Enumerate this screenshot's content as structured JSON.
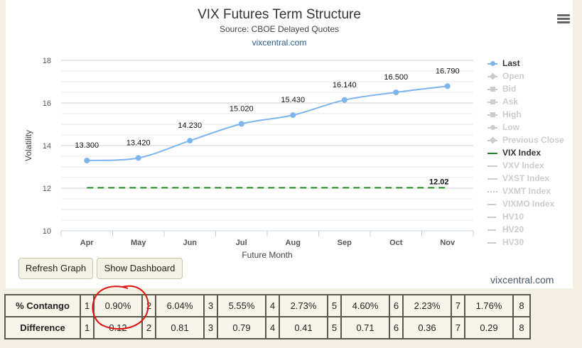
{
  "chart": {
    "title": "VIX Futures Term Structure",
    "subtitle": "Source: CBOE Delayed Quotes",
    "site_link": "vixcentral.com",
    "menu_icon": "hamburger-menu-icon"
  },
  "chart_data": {
    "type": "line",
    "xlabel": "Future Month",
    "ylabel": "Volatility",
    "categories": [
      "Apr",
      "May",
      "Jun",
      "Jul",
      "Aug",
      "Sep",
      "Oct",
      "Nov"
    ],
    "ylim": [
      10,
      18
    ],
    "yticks": [
      10,
      12,
      14,
      16,
      18
    ],
    "grid": true,
    "legend_placement": "right",
    "series": [
      {
        "name": "Last",
        "values": [
          13.3,
          13.42,
          14.23,
          15.02,
          15.43,
          16.14,
          16.5,
          16.79
        ],
        "labels": [
          "13.300",
          "13.420",
          "14.230",
          "15.020",
          "15.430",
          "16.140",
          "16.500",
          "16.790"
        ],
        "color": "#7cb5ec"
      },
      {
        "name": "VIX Index",
        "value": 12.02,
        "label": "12.02",
        "style": "dashed",
        "color": "#1a8a1a"
      }
    ]
  },
  "legend": [
    {
      "label": "Last",
      "active": true,
      "swatch": "line-dot",
      "color": "#7cb5ec"
    },
    {
      "label": "Open",
      "active": false,
      "swatch": "line-diamond"
    },
    {
      "label": "Bid",
      "active": false,
      "swatch": "line-square"
    },
    {
      "label": "Ask",
      "active": false,
      "swatch": "line-triangle"
    },
    {
      "label": "High",
      "active": false,
      "swatch": "line-triangle-down"
    },
    {
      "label": "Low",
      "active": false,
      "swatch": "line-dot"
    },
    {
      "label": "Previous Close",
      "active": false,
      "swatch": "line-diamond"
    },
    {
      "label": "VIX Index",
      "active": true,
      "swatch": "line",
      "color": "#1a8a1a"
    },
    {
      "label": "VXV Index",
      "active": false,
      "swatch": "line"
    },
    {
      "label": "VXST Index",
      "active": false,
      "swatch": "line"
    },
    {
      "label": "VXMT Index",
      "active": false,
      "swatch": "dotted"
    },
    {
      "label": "VIXMO Index",
      "active": false,
      "swatch": "dash-dot"
    },
    {
      "label": "HV10",
      "active": false,
      "swatch": "dash-dot"
    },
    {
      "label": "HV20",
      "active": false,
      "swatch": "dash-dot"
    },
    {
      "label": "HV30",
      "active": false,
      "swatch": "dash-dot"
    }
  ],
  "buttons": {
    "refresh": "Refresh Graph",
    "dashboard": "Show Dashboard"
  },
  "footer_link": "vixcentral.com",
  "table": {
    "rows": [
      {
        "label": "% Contango",
        "cells": [
          {
            "idx": "1",
            "val": "0.90%"
          },
          {
            "idx": "2",
            "val": "6.04%"
          },
          {
            "idx": "3",
            "val": "5.55%"
          },
          {
            "idx": "4",
            "val": "2.73%"
          },
          {
            "idx": "5",
            "val": "4.60%"
          },
          {
            "idx": "6",
            "val": "2.23%"
          },
          {
            "idx": "7",
            "val": "1.76%"
          }
        ],
        "last": "8"
      },
      {
        "label": "Difference",
        "cells": [
          {
            "idx": "1",
            "val": "0.12"
          },
          {
            "idx": "2",
            "val": "0.81"
          },
          {
            "idx": "3",
            "val": "0.79"
          },
          {
            "idx": "4",
            "val": "0.41"
          },
          {
            "idx": "5",
            "val": "0.71"
          },
          {
            "idx": "6",
            "val": "0.36"
          },
          {
            "idx": "7",
            "val": "0.29"
          }
        ],
        "last": "8"
      }
    ]
  },
  "annotation_color": "#dd1111"
}
